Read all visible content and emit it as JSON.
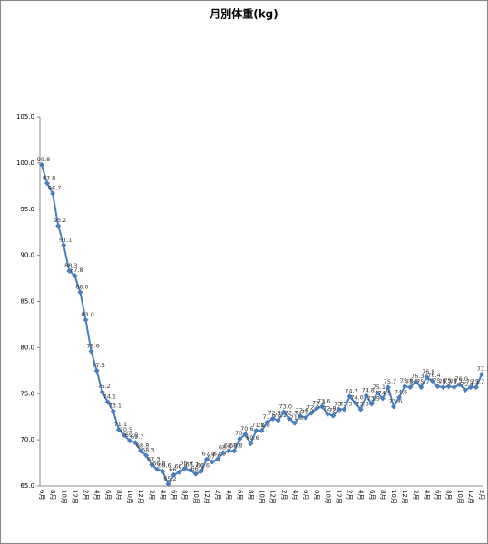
{
  "chart_data": {
    "type": "line",
    "title": "月別体重(kg)",
    "categories": [
      "6月",
      null,
      "8月",
      null,
      "10月",
      null,
      "12月",
      null,
      "2月",
      null,
      "4月",
      null,
      "6月",
      null,
      "8月",
      null,
      "10月",
      null,
      "12月",
      null,
      "2月",
      null,
      "4月",
      null,
      "6月",
      null,
      "8月",
      null,
      "10月",
      null,
      "12月",
      null,
      "2月",
      null,
      "4月",
      null,
      "6月",
      null,
      "8月",
      null,
      "10月",
      null,
      "12月",
      null,
      "2月",
      null,
      "4月",
      null,
      "6月",
      null,
      "8月",
      null,
      "10月",
      null,
      "12月",
      null,
      "2月",
      null,
      "4月",
      null,
      "6月",
      null,
      "8月",
      null,
      "10月",
      null,
      "12月",
      null,
      "2月",
      null,
      "4月",
      null,
      "6月",
      null,
      "8月",
      null,
      "10月",
      null,
      "12月",
      null,
      "2月"
    ],
    "series": [
      {
        "name": "体重",
        "color": "#4a7ebb",
        "values": [
          99.8,
          97.8,
          96.7,
          93.2,
          91.1,
          88.3,
          87.8,
          86.0,
          83.0,
          79.6,
          77.5,
          75.2,
          74.1,
          73.1,
          71.1,
          70.5,
          69.9,
          69.7,
          68.8,
          68.3,
          67.3,
          66.8,
          66.6,
          65.2,
          66.2,
          66.5,
          66.9,
          66.7,
          66.3,
          66.6,
          67.9,
          67.6,
          67.9,
          68.6,
          68.8,
          68.8,
          70.1,
          70.6,
          69.6,
          71.0,
          71.0,
          71.9,
          72.3,
          72.1,
          73.0,
          72.3,
          71.8,
          72.6,
          72.4,
          72.9,
          73.4,
          73.6,
          72.8,
          72.6,
          73.3,
          73.3,
          74.7,
          74.0,
          73.3,
          74.8,
          73.9,
          75.1,
          74.5,
          75.7,
          73.6,
          74.6,
          75.8,
          75.7,
          76.3,
          75.7,
          76.8,
          76.4,
          75.8,
          75.7,
          75.8,
          75.7,
          76.0,
          75.4,
          75.7,
          75.7,
          77.1
        ],
        "value_labels": [
          "99.8",
          "97.8",
          "96.7",
          "93.2",
          "91.1",
          "88.3",
          "87.8",
          "86.0",
          "83.0",
          "79.6",
          "77.5",
          "75.2",
          "74.1",
          "73.1",
          "71.1",
          "70.5",
          "69.9",
          "69.7",
          "68.8",
          "68.3",
          "67.3",
          "66.8",
          "66.6",
          "65.2",
          "66.2",
          "66.5",
          "66.9",
          "66.7",
          "66.3",
          "66.6",
          "67.9",
          "67.6",
          "67.9",
          "68.6",
          "68.8",
          "68.8",
          "70.1",
          "70.6",
          "69.6",
          "71.0",
          "71.0",
          "71.9",
          "72.3",
          "72.1",
          "73.0",
          "72.3",
          "71.8",
          "72.6",
          "72.4",
          "72.9",
          "73.4",
          "73.6",
          "72.8",
          "72.6",
          "73.3",
          "73.3",
          "74.7",
          "74.0",
          "73.3",
          "74.8",
          "73.9",
          "75.1",
          "74.5",
          "75.7",
          "73.6",
          "74.6",
          "75.8",
          "75.7",
          "76.3",
          "75.7",
          "76.8",
          "76.4",
          "75.8",
          "75.7",
          "75.8",
          "75.7",
          "76.0",
          "75.4",
          "75.7",
          "75.7",
          "77.1"
        ]
      }
    ],
    "ylim": [
      65,
      105
    ],
    "yticks": [
      {
        "value": 65,
        "label": "65.0"
      },
      {
        "value": 70,
        "label": "70.0"
      },
      {
        "value": 75,
        "label": "75.0"
      },
      {
        "value": 80,
        "label": "80.0"
      },
      {
        "value": 85,
        "label": "85.0"
      },
      {
        "value": 90,
        "label": "90.0"
      },
      {
        "value": 95,
        "label": "95.0"
      },
      {
        "value": 100,
        "label": "100.0"
      },
      {
        "value": 105,
        "label": "105.0"
      }
    ],
    "grid": false
  }
}
